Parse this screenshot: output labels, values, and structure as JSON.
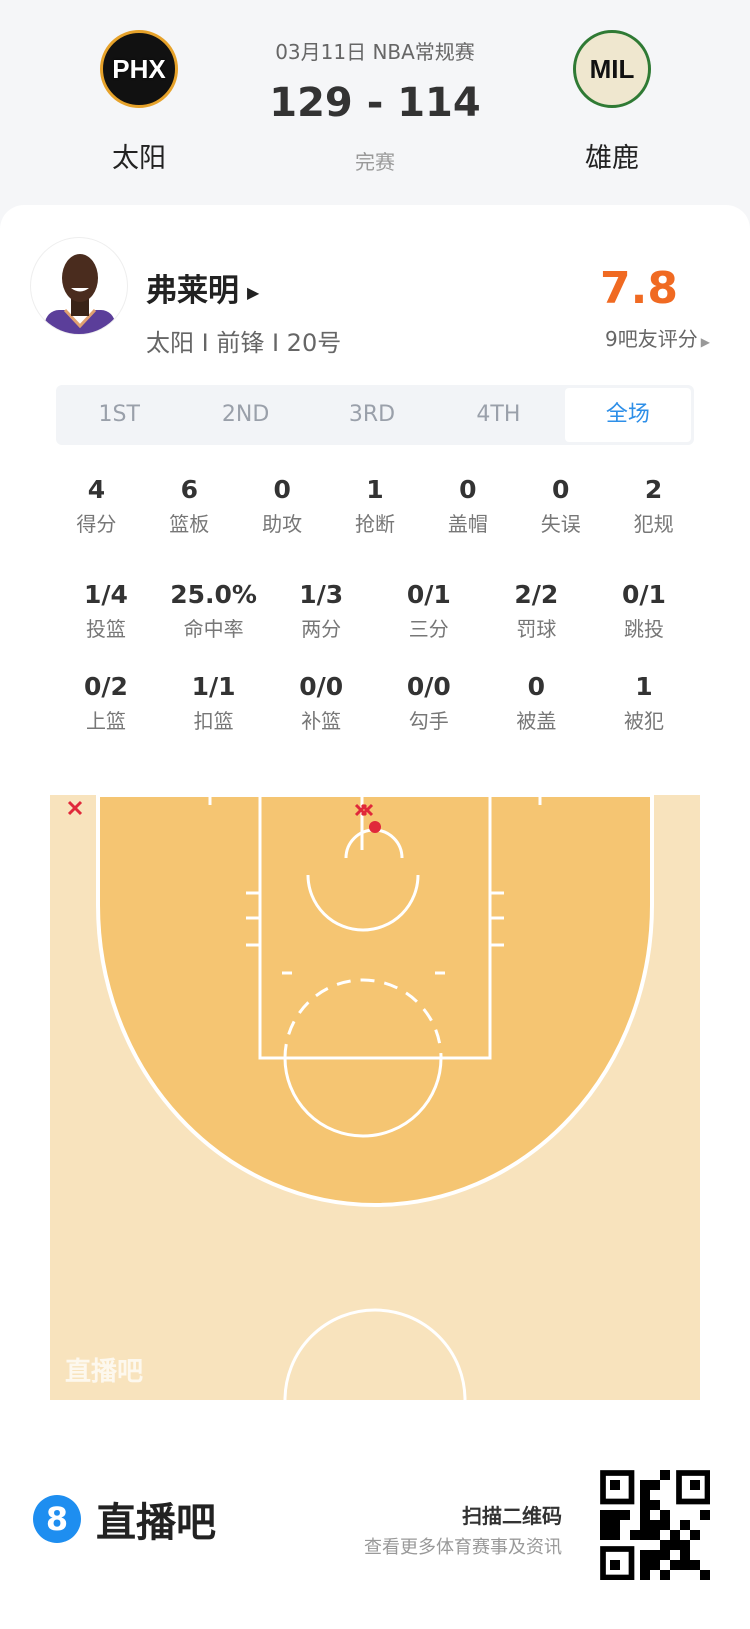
{
  "game": {
    "date_type": "03月11日 NBA常规赛",
    "score": "129 - 114",
    "status": "完赛",
    "home": {
      "abbr": "PHX",
      "name": "太阳"
    },
    "away": {
      "abbr": "MIL",
      "name": "雄鹿"
    }
  },
  "player": {
    "name": "弗莱明",
    "info": "太阳 I 前锋 I 20号",
    "rating": "7.8",
    "rating_label": "9吧友评分"
  },
  "tabs": [
    {
      "label": "1ST"
    },
    {
      "label": "2ND"
    },
    {
      "label": "3RD"
    },
    {
      "label": "4TH"
    },
    {
      "label": "全场",
      "active": true
    }
  ],
  "stats_row1": [
    {
      "v": "4",
      "l": "得分"
    },
    {
      "v": "6",
      "l": "篮板"
    },
    {
      "v": "0",
      "l": "助攻"
    },
    {
      "v": "1",
      "l": "抢断"
    },
    {
      "v": "0",
      "l": "盖帽"
    },
    {
      "v": "0",
      "l": "失误"
    },
    {
      "v": "2",
      "l": "犯规"
    }
  ],
  "stats_row2": [
    {
      "v": "1/4",
      "l": "投篮"
    },
    {
      "v": "25.0%",
      "l": "命中率"
    },
    {
      "v": "1/3",
      "l": "两分"
    },
    {
      "v": "0/1",
      "l": "三分"
    },
    {
      "v": "2/2",
      "l": "罚球"
    },
    {
      "v": "0/1",
      "l": "跳投"
    }
  ],
  "stats_row3": [
    {
      "v": "0/2",
      "l": "上篮"
    },
    {
      "v": "1/1",
      "l": "扣篮"
    },
    {
      "v": "0/0",
      "l": "补篮"
    },
    {
      "v": "0/0",
      "l": "勾手"
    },
    {
      "v": "0",
      "l": "被盖"
    },
    {
      "v": "1",
      "l": "被犯"
    }
  ],
  "shots": [
    {
      "result": "miss",
      "zone": "left-corner-three"
    },
    {
      "result": "miss",
      "zone": "rim"
    },
    {
      "result": "miss",
      "zone": "rim"
    },
    {
      "result": "made",
      "zone": "rim"
    }
  ],
  "court": {
    "watermark": "直播吧",
    "colors": {
      "outer": "#f8e3bd",
      "inside": "#f5c572",
      "line": "#ffffff",
      "shot": "#e0283a"
    }
  },
  "footer": {
    "brand": "直播吧",
    "scan": "扫描二维码",
    "desc": "查看更多体育赛事及资讯"
  },
  "colors": {
    "accent": "#2e8fe8",
    "rating": "#f06a22"
  }
}
